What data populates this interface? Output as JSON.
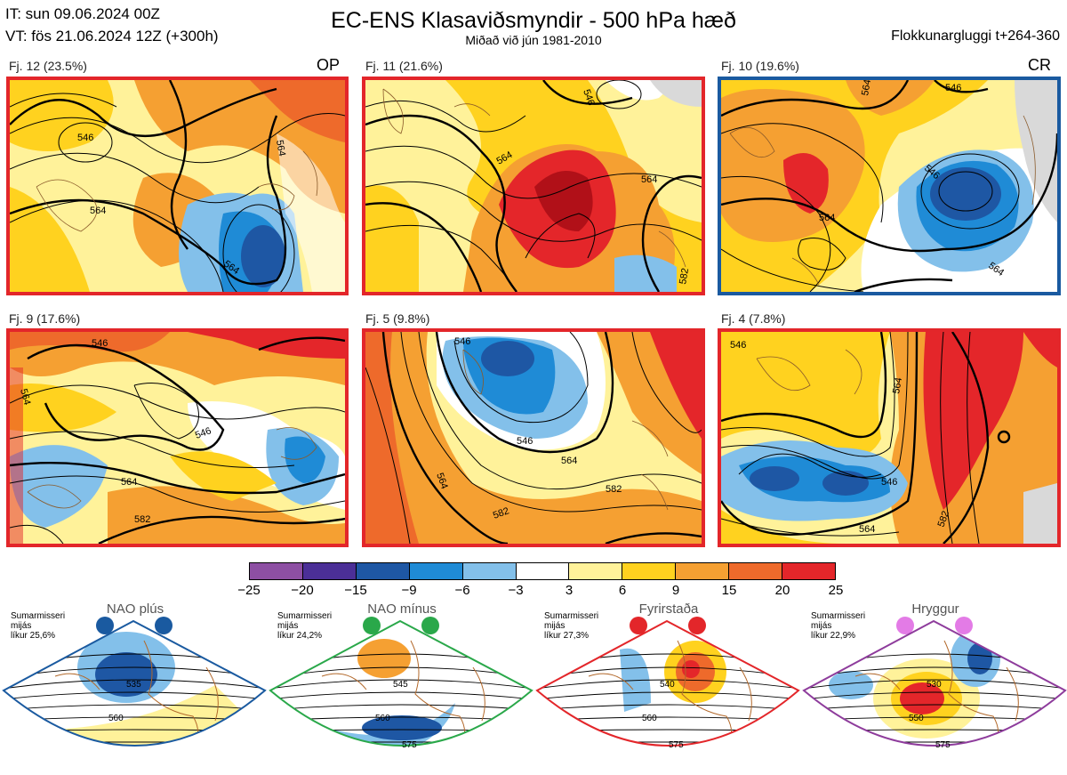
{
  "header": {
    "it": "IT: sun 09.06.2024 00Z",
    "vt": "VT: fös 21.06.2024 12Z  (+300h)",
    "title": "EC-ENS Klasaviðsmyndir - 500 hPa hæð",
    "subtitle": "Miðað við jún 1981-2010",
    "window": "Flokkunargluggi t+264-360"
  },
  "panels": [
    {
      "label": "Fj. 12 (23.5%)",
      "tag": "OP",
      "border": "#e3262a",
      "contours": [
        "546",
        "564",
        "564",
        "564"
      ]
    },
    {
      "label": "Fj. 11 (21.6%)",
      "tag": "",
      "border": "#e3262a",
      "contours": [
        "546",
        "564",
        "564",
        "582"
      ]
    },
    {
      "label": "Fj. 10 (19.6%)",
      "tag": "CR",
      "border": "#1a5aa0",
      "contours": [
        "546",
        "564",
        "564",
        "564",
        "546"
      ]
    },
    {
      "label": "Fj. 9 (17.6%)",
      "tag": "",
      "border": "#e3262a",
      "contours": [
        "546",
        "546",
        "564",
        "564",
        "582"
      ]
    },
    {
      "label": "Fj. 5 (9.8%)",
      "tag": "",
      "border": "#e3262a",
      "contours": [
        "546",
        "546",
        "564",
        "564",
        "582",
        "582"
      ]
    },
    {
      "label": "Fj. 4 (7.8%)",
      "tag": "",
      "border": "#e3262a",
      "contours": [
        "546",
        "546",
        "564",
        "564",
        "582"
      ]
    }
  ],
  "colorbar": {
    "ticks": [
      "−25",
      "−20",
      "−15",
      "−9",
      "−6",
      "−3",
      "3",
      "6",
      "9",
      "15",
      "20",
      "25"
    ],
    "colors": [
      "#8d4fa3",
      "#4b2f97",
      "#1e57a4",
      "#1f8bd6",
      "#83c0ea",
      "#ffffff",
      "#fff29a",
      "#ffd21f",
      "#f5a032",
      "#ee6a2b",
      "#e4262a",
      "#b11018"
    ]
  },
  "regimes": [
    {
      "name": "NAO plús",
      "text": [
        "Sumarmisseri",
        "mijás",
        "líkur 25,6%"
      ],
      "border": "#1a5aa0",
      "dot": "#1a5aa0",
      "contours": [
        "535",
        "560"
      ]
    },
    {
      "name": "NAO mínus",
      "text": [
        "Sumarmisseri",
        "mijás",
        "líkur 24,2%"
      ],
      "border": "#2aa84a",
      "dot": "#2aa84a",
      "contours": [
        "545",
        "560",
        "575"
      ]
    },
    {
      "name": "Fyrirstaða",
      "text": [
        "Sumarmisseri",
        "mijás",
        "líkur 27,3%"
      ],
      "border": "#e3262a",
      "dot": "#e3262a",
      "contours": [
        "540",
        "560",
        "575"
      ]
    },
    {
      "name": "Hryggur",
      "text": [
        "Sumarmisseri",
        "mijás",
        "líkur 22,9%"
      ],
      "border": "#8e3c9c",
      "dot": "#e37be6",
      "contours": [
        "530",
        "550",
        "575"
      ]
    }
  ]
}
